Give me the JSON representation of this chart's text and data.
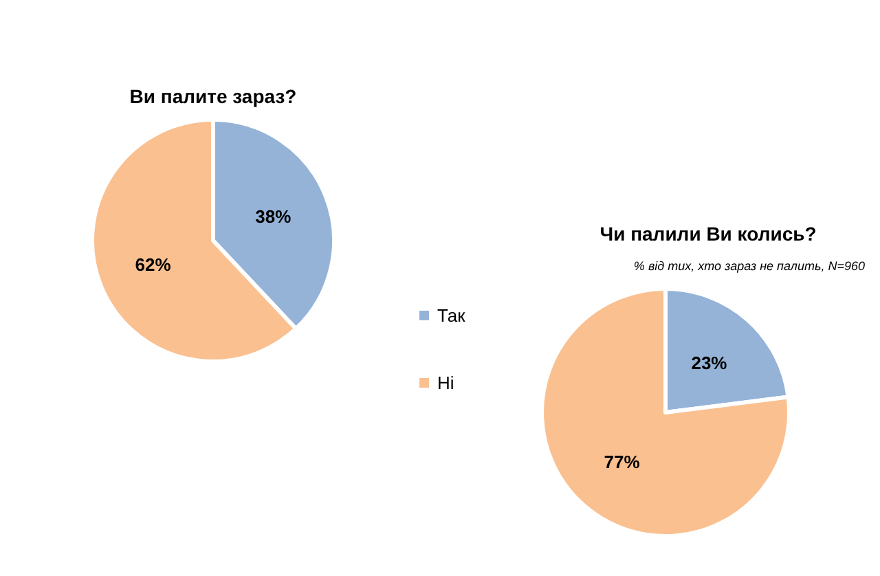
{
  "chart_data": [
    {
      "type": "pie",
      "title": "Ви палите зараз?",
      "categories": [
        "Так",
        "Ні"
      ],
      "values": [
        38,
        62
      ],
      "value_labels": [
        "38%",
        "62%"
      ],
      "colors": [
        "#95b3d7",
        "#fac090"
      ],
      "legend": "right"
    },
    {
      "type": "pie",
      "title": "Чи палили Ви колись?",
      "subtitle": "% від тих, хто зараз не палить, N=960",
      "categories": [
        null,
        null
      ],
      "values": [
        23,
        77
      ],
      "value_labels": [
        "23%",
        "77%"
      ],
      "colors": [
        "#95b3d7",
        "#fac090"
      ]
    }
  ]
}
